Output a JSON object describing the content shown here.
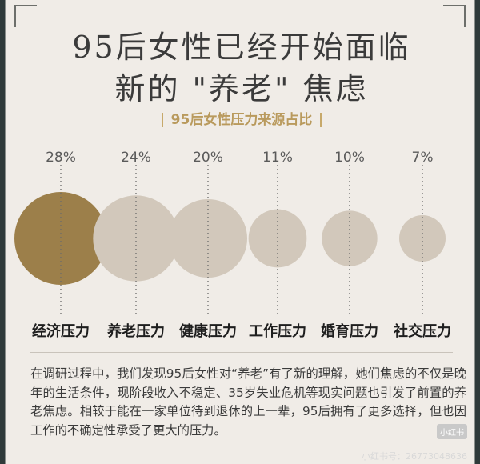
{
  "header": {
    "title_line1": "95后女性已经开始面临",
    "title_line2": "新的 \"养老\" 焦虑"
  },
  "chart_data": {
    "type": "bubble",
    "title": "95后女性压力来源占比",
    "categories": [
      "经济压力",
      "养老压力",
      "健康压力",
      "工作压力",
      "婚育压力",
      "社交压力"
    ],
    "values": [
      28,
      24,
      20,
      11,
      10,
      7
    ],
    "value_labels": [
      "28%",
      "24%",
      "20%",
      "11%",
      "10%",
      "7%"
    ],
    "unit": "%",
    "colors": {
      "highlight": "#9c7f4a",
      "normal": "#d2c8bb",
      "dashed_line": "#6b6b6b"
    }
  },
  "body_text": "在调研过程中，我们发现95后女性对“养老”有了新的理解，她们焦虑的不仅是晚年的生活条件，现阶段收入不稳定、35岁失业危机等现实问题也引发了前置的养老焦虑。相较于能在一家单位待到退休的上一辈，95后拥有了更多选择，但也因工作的不确定性承受了更大的压力。",
  "watermark": {
    "badge": "小红书",
    "text": "小红书号：26773048636"
  }
}
